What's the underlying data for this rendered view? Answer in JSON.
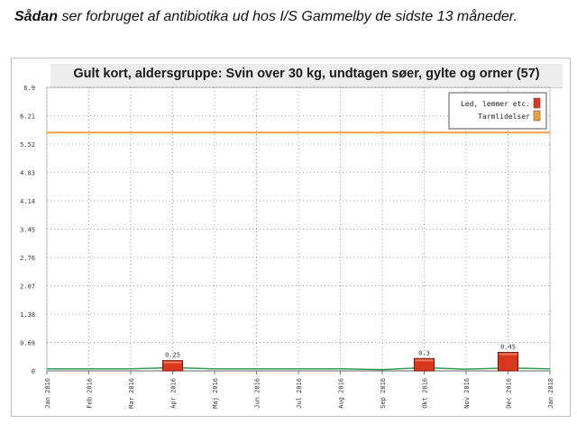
{
  "header": {
    "title_bold": "Sådan",
    "title_rest": " ser forbruget af antibiotika ud hos I/S Gammelby de sidste 13 måneder."
  },
  "colors": {
    "bar": "#d9381e",
    "line": "#f0a040",
    "baseline": "#2e9b4e",
    "grid": "#888888"
  },
  "chart_data": {
    "type": "bar",
    "title": "Gult kort, aldersgruppe: Svin over 30 kg, undtagen søer, gylte og orner (57)",
    "categories": [
      "Jan 2016",
      "Feb 2016",
      "Mar 2016",
      "Apr 2016",
      "Maj 2016",
      "Jun 2016",
      "Jul 2016",
      "Aug 2016",
      "Sep 2016",
      "Okt 2016",
      "Nov 2016",
      "Dec 2016",
      "Jan 2018"
    ],
    "y_ticks": [
      "0",
      "0.69",
      "1.38",
      "2.07",
      "2.76",
      "3.45",
      "4.14",
      "4.83",
      "5.52",
      "6.21",
      "6.9"
    ],
    "ylim": [
      0,
      6.9
    ],
    "grid": true,
    "legend_position": "top-right",
    "series": [
      {
        "name": "Led, lemmer etc.",
        "type": "bar",
        "color": "#d9381e",
        "values": [
          0,
          0,
          0,
          0.25,
          0,
          0,
          0,
          0,
          0,
          0.3,
          0,
          0.45,
          0
        ],
        "labels": [
          "",
          "",
          "",
          "0.25",
          "",
          "",
          "",
          "",
          "",
          "0.3",
          "",
          "0.45",
          ""
        ]
      },
      {
        "name": "Tarmlidelser",
        "type": "line",
        "color": "#f0a040",
        "values": [
          5.8,
          5.8,
          5.8,
          5.8,
          5.8,
          5.8,
          5.8,
          5.8,
          5.8,
          5.8,
          5.8,
          5.8,
          5.8
        ]
      }
    ],
    "baseline_series": {
      "color": "#2e9b4e",
      "values": [
        0.05,
        0.05,
        0.05,
        0.08,
        0.05,
        0.05,
        0.05,
        0.05,
        0.03,
        0.08,
        0.04,
        0.07,
        0.05
      ]
    }
  }
}
